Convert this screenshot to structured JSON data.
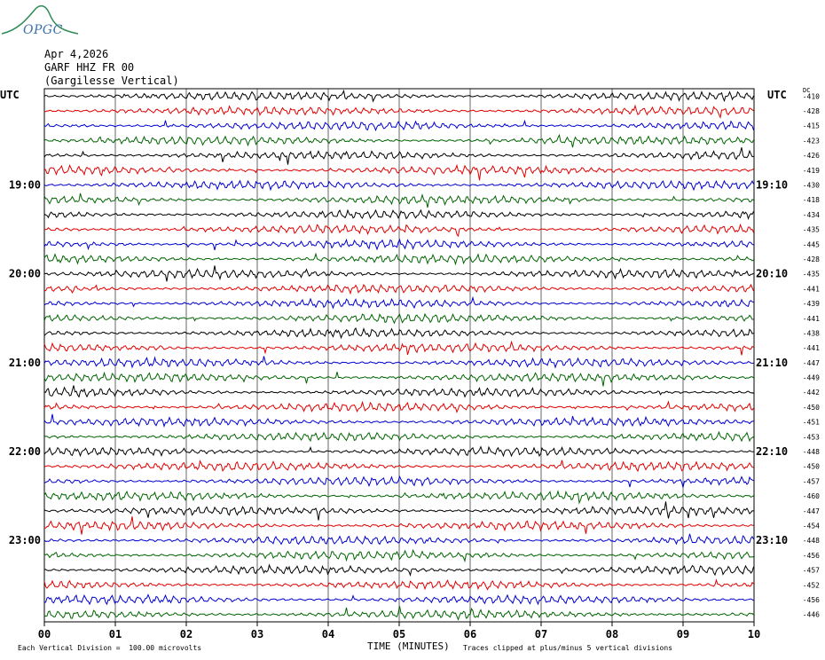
{
  "header": {
    "logo_text": "OPGC",
    "date": "Apr 4,2026",
    "station": "GARF HHZ FR 00",
    "location": "(Gargilesse Vertical)"
  },
  "left_axis_label": "UTC",
  "right_axis_label": "UTC",
  "dc_label": "DC",
  "footer": {
    "scale_note": "Each Vertical Division =  100.00 microvolts",
    "clip_note": "Traces clipped at plus/minus 5 vertical divisions"
  },
  "chart_data": {
    "type": "line",
    "title": "",
    "xlabel": "TIME (MINUTES)",
    "x_ticks": [
      "00",
      "01",
      "02",
      "03",
      "04",
      "05",
      "06",
      "07",
      "08",
      "09",
      "10"
    ],
    "xlim": [
      0,
      10
    ],
    "left_hour_labels": [
      "19:00",
      "20:00",
      "21:00",
      "22:00",
      "23:00"
    ],
    "right_hour_labels": [
      "19:10",
      "20:10",
      "21:10",
      "22:10",
      "23:10"
    ],
    "trace_colors": [
      "#000000",
      "#e00000",
      "#0000d0",
      "#006400"
    ],
    "dc_offsets": [
      -410,
      -428,
      -415,
      -423,
      -426,
      -419,
      -430,
      -418,
      -434,
      -435,
      -445,
      -428,
      -435,
      -441,
      -439,
      -441,
      -438,
      -441,
      -447,
      -449,
      -442,
      -450,
      -451,
      -453,
      -448,
      -450,
      -457,
      -460,
      -447,
      -454,
      -448,
      -456,
      -457,
      -452,
      -456,
      -446
    ],
    "grid": true
  }
}
